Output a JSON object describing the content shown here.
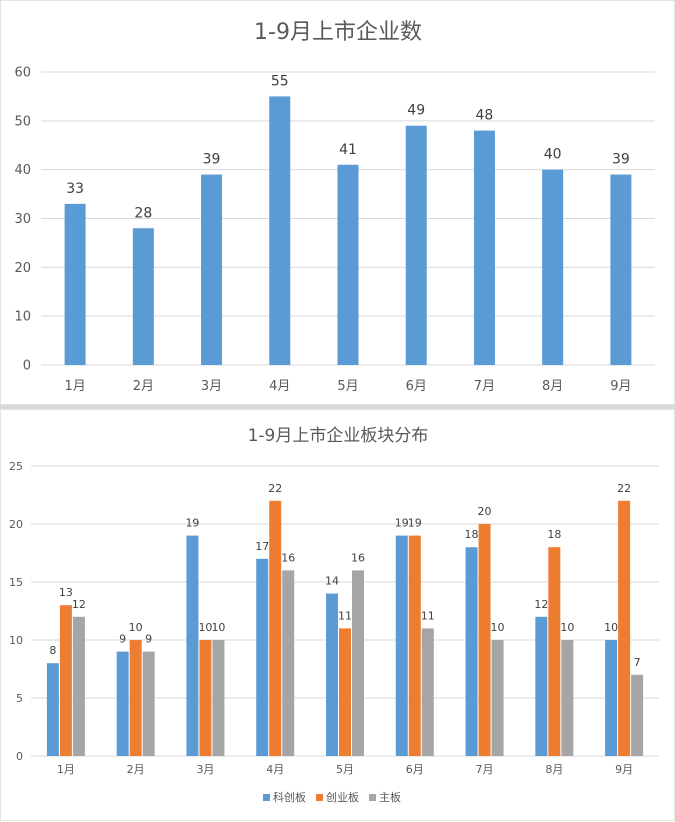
{
  "chart_data": [
    {
      "type": "bar",
      "title": "1-9月上市企业数",
      "categories": [
        "1月",
        "2月",
        "3月",
        "4月",
        "5月",
        "6月",
        "7月",
        "8月",
        "9月"
      ],
      "series": [
        {
          "values": [
            33,
            28,
            39,
            55,
            41,
            49,
            48,
            40,
            39
          ],
          "color": "#5b9bd5"
        }
      ],
      "ylim": [
        0,
        60
      ],
      "yticks": [
        0,
        10,
        20,
        30,
        40,
        50,
        60
      ],
      "grid": true,
      "data_labels": true
    },
    {
      "type": "bar",
      "title": "1-9月上市企业板块分布",
      "categories": [
        "1月",
        "2月",
        "3月",
        "4月",
        "5月",
        "6月",
        "7月",
        "8月",
        "9月"
      ],
      "series": [
        {
          "name": "科创板",
          "values": [
            8,
            9,
            19,
            17,
            14,
            19,
            18,
            12,
            10
          ],
          "color": "#5b9bd5"
        },
        {
          "name": "创业板",
          "values": [
            13,
            10,
            10,
            22,
            11,
            19,
            20,
            18,
            22
          ],
          "color": "#ed7d31"
        },
        {
          "name": "主板",
          "values": [
            12,
            9,
            10,
            16,
            16,
            11,
            10,
            10,
            7
          ],
          "color": "#a5a5a5"
        }
      ],
      "ylim": [
        0,
        25
      ],
      "yticks": [
        0,
        5,
        10,
        15,
        20,
        25
      ],
      "grid": true,
      "legend_position": "bottom",
      "data_labels": true
    }
  ]
}
